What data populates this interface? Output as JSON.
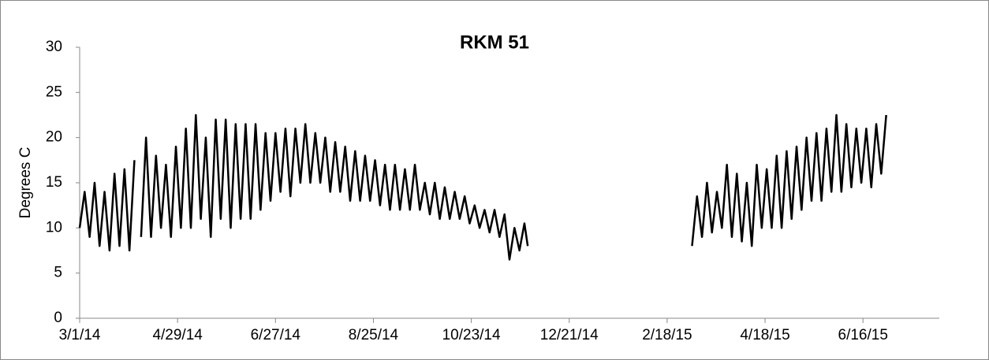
{
  "chart_data": {
    "type": "line",
    "title": "RKM 51",
    "y_label": "Degrees  C",
    "color": "#000000",
    "x": [
      "2014-03-01",
      "2014-03-04",
      "2014-03-07",
      "2014-03-10",
      "2014-03-13",
      "2014-03-16",
      "2014-03-19",
      "2014-03-22",
      "2014-03-25",
      "2014-03-28",
      "2014-03-31",
      "2014-04-03",
      "2014-04-05",
      "2014-04-07",
      "2014-04-10",
      "2014-04-13",
      "2014-04-16",
      "2014-04-19",
      "2014-04-22",
      "2014-04-25",
      "2014-04-28",
      "2014-05-01",
      "2014-05-04",
      "2014-05-07",
      "2014-05-10",
      "2014-05-13",
      "2014-05-16",
      "2014-05-19",
      "2014-05-22",
      "2014-05-25",
      "2014-05-28",
      "2014-05-31",
      "2014-06-03",
      "2014-06-06",
      "2014-06-09",
      "2014-06-12",
      "2014-06-15",
      "2014-06-18",
      "2014-06-21",
      "2014-06-24",
      "2014-06-27",
      "2014-06-30",
      "2014-07-03",
      "2014-07-06",
      "2014-07-09",
      "2014-07-12",
      "2014-07-15",
      "2014-07-18",
      "2014-07-21",
      "2014-07-24",
      "2014-07-27",
      "2014-07-30",
      "2014-08-02",
      "2014-08-05",
      "2014-08-08",
      "2014-08-11",
      "2014-08-14",
      "2014-08-17",
      "2014-08-20",
      "2014-08-23",
      "2014-08-26",
      "2014-08-29",
      "2014-09-01",
      "2014-09-04",
      "2014-09-07",
      "2014-09-10",
      "2014-09-13",
      "2014-09-16",
      "2014-09-19",
      "2014-09-22",
      "2014-09-25",
      "2014-09-28",
      "2014-10-01",
      "2014-10-04",
      "2014-10-07",
      "2014-10-10",
      "2014-10-13",
      "2014-10-16",
      "2014-10-19",
      "2014-10-22",
      "2014-10-25",
      "2014-10-28",
      "2014-10-31",
      "2014-11-03",
      "2014-11-06",
      "2014-11-09",
      "2014-11-12",
      "2014-11-15",
      "2014-11-18",
      "2014-11-21",
      "2014-11-24",
      "2014-11-26",
      "2015-01-01",
      "2015-03-05",
      "2015-03-08",
      "2015-03-11",
      "2015-03-14",
      "2015-03-17",
      "2015-03-20",
      "2015-03-23",
      "2015-03-26",
      "2015-03-29",
      "2015-04-01",
      "2015-04-04",
      "2015-04-07",
      "2015-04-10",
      "2015-04-13",
      "2015-04-16",
      "2015-04-19",
      "2015-04-22",
      "2015-04-25",
      "2015-04-28",
      "2015-05-01",
      "2015-05-04",
      "2015-05-07",
      "2015-05-10",
      "2015-05-13",
      "2015-05-16",
      "2015-05-19",
      "2015-05-22",
      "2015-05-25",
      "2015-05-28",
      "2015-05-31",
      "2015-06-03",
      "2015-06-06",
      "2015-06-09",
      "2015-06-12",
      "2015-06-15",
      "2015-06-18",
      "2015-06-21",
      "2015-06-24",
      "2015-06-27",
      "2015-06-30"
    ],
    "values": [
      10,
      14,
      9,
      15,
      8,
      14,
      7.5,
      16,
      8,
      16.5,
      7.5,
      17.5,
      null,
      9,
      20,
      9,
      18,
      10,
      17,
      9,
      19,
      10,
      21,
      10,
      22.5,
      11,
      20,
      9,
      22,
      11,
      22,
      10,
      21.5,
      11,
      21.5,
      11,
      21.5,
      12,
      20.5,
      13,
      20.5,
      14,
      21,
      13.5,
      21,
      15,
      21.5,
      15,
      20.5,
      15,
      20,
      14,
      19.5,
      14,
      19,
      13,
      18.5,
      13,
      18,
      13,
      17.5,
      12.5,
      17,
      12,
      17,
      12,
      16.5,
      12,
      17,
      12,
      15,
      11.5,
      15,
      11,
      14.5,
      11,
      14,
      11,
      13.5,
      10.5,
      12.5,
      10,
      12,
      9.5,
      12,
      9,
      11.5,
      6.5,
      10,
      7.5,
      10.5,
      8,
      null,
      8,
      13.5,
      9,
      15,
      9.5,
      14,
      10,
      17,
      9,
      16,
      8.5,
      15,
      8,
      17,
      10,
      16.5,
      10,
      18,
      10,
      18.5,
      11,
      19,
      12,
      20,
      13,
      20.5,
      13,
      21,
      14,
      22.5,
      14,
      21.5,
      14.5,
      21,
      15,
      21,
      14.5,
      21.5,
      16,
      22.5
    ],
    "xlim": [
      "2014-03-01",
      "2015-08-01"
    ],
    "xticks": [
      {
        "value": "2014-03-01",
        "label": "3/1/14"
      },
      {
        "value": "2014-04-29",
        "label": "4/29/14"
      },
      {
        "value": "2014-06-27",
        "label": "6/27/14"
      },
      {
        "value": "2014-08-25",
        "label": "8/25/14"
      },
      {
        "value": "2014-10-23",
        "label": "10/23/14"
      },
      {
        "value": "2014-12-21",
        "label": "12/21/14"
      },
      {
        "value": "2015-02-18",
        "label": "2/18/15"
      },
      {
        "value": "2015-04-18",
        "label": "4/18/15"
      },
      {
        "value": "2015-06-16",
        "label": "6/16/15"
      }
    ],
    "ylim": [
      0,
      30
    ],
    "yticks": [
      0,
      5,
      10,
      15,
      20,
      25,
      30
    ],
    "grid": false
  }
}
